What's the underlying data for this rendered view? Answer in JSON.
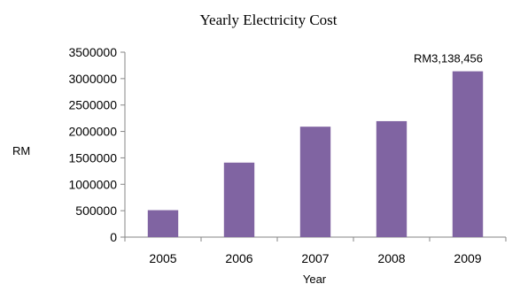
{
  "chart_data": {
    "type": "bar",
    "title": "Yearly Electricity Cost",
    "xlabel": "Year",
    "ylabel": "RM",
    "categories": [
      "2005",
      "2006",
      "2007",
      "2008",
      "2009"
    ],
    "values": [
      510000,
      1410000,
      2090000,
      2195000,
      3138456
    ],
    "ylim": [
      0,
      3500000
    ],
    "yticks": [
      0,
      500000,
      1000000,
      1500000,
      2000000,
      2500000,
      3000000,
      3500000
    ],
    "grid": false,
    "legend": "none",
    "bar_color": "#8064A2",
    "data_labels": [
      {
        "category": "2009",
        "text": "RM3,138,456"
      }
    ]
  }
}
